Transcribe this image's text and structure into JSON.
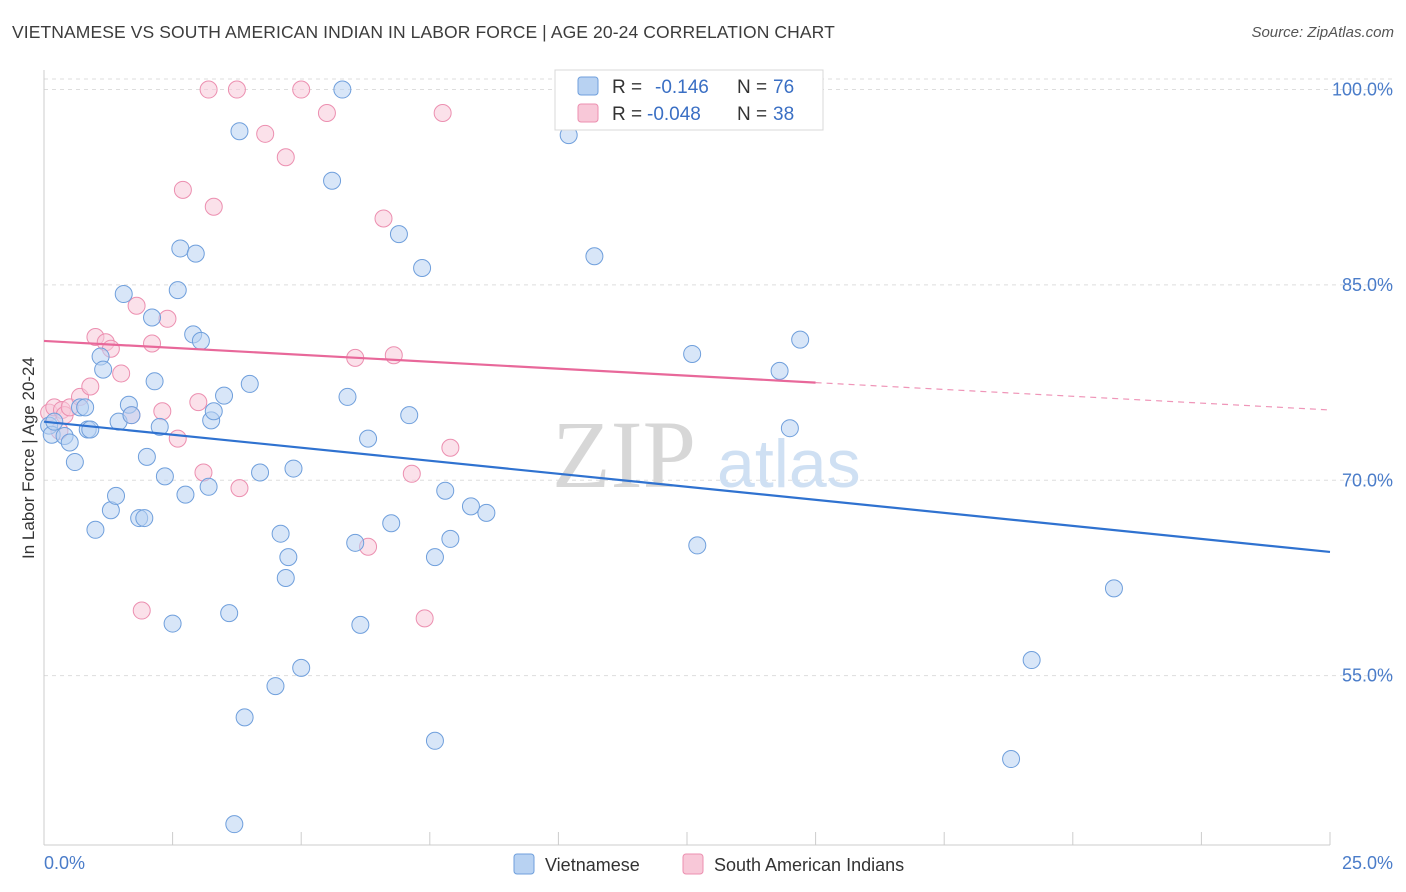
{
  "header": {
    "title": "VIETNAMESE VS SOUTH AMERICAN INDIAN IN LABOR FORCE | AGE 20-24 CORRELATION CHART",
    "source": "Source: ZipAtlas.com"
  },
  "watermark": {
    "zip": "ZIP",
    "atlas": "atlas"
  },
  "legend_box": {
    "rows": [
      {
        "r_label": "R =",
        "r_value": "-0.146",
        "n_label": "N =",
        "n_value": "76"
      },
      {
        "r_label": "R =",
        "r_value": "-0.048",
        "n_label": "N =",
        "n_value": "38"
      }
    ]
  },
  "colors": {
    "series1_fill": "#b8d2f2",
    "series1_stroke": "#6f9fdc",
    "series1_line": "#2f72d0",
    "series2_fill": "#f8c8d8",
    "series2_stroke": "#ec8fb0",
    "series2_line": "#e8689a",
    "tick_text": "#4a7cc9",
    "grid": "#dddddd"
  },
  "chart_data": {
    "type": "scatter",
    "title": "VIETNAMESE VS SOUTH AMERICAN INDIAN IN LABOR FORCE | AGE 20-24 CORRELATION CHART",
    "xlabel": "",
    "ylabel": "In Labor Force | Age 20-24",
    "xlim": [
      0,
      25
    ],
    "ylim": [
      42,
      101.5
    ],
    "x_ticks": [
      "0.0%",
      "25.0%"
    ],
    "y_ticks": [
      {
        "value": 55,
        "label": "55.0%"
      },
      {
        "value": 70,
        "label": "70.0%"
      },
      {
        "value": 85,
        "label": "85.0%"
      },
      {
        "value": 100,
        "label": "100.0%"
      }
    ],
    "grid": true,
    "legend_position": "bottom",
    "series": [
      {
        "name": "Vietnamese",
        "r": -0.146,
        "n": 76,
        "trend": {
          "x": [
            0,
            25
          ],
          "y": [
            74.5,
            64.5
          ]
        },
        "points": [
          [
            0.1,
            74.2
          ],
          [
            0.15,
            73.5
          ],
          [
            0.2,
            74.5
          ],
          [
            0.4,
            73.4
          ],
          [
            0.5,
            72.9
          ],
          [
            0.6,
            71.4
          ],
          [
            0.7,
            75.6
          ],
          [
            0.8,
            75.6
          ],
          [
            0.85,
            73.9
          ],
          [
            0.9,
            73.9
          ],
          [
            1.0,
            66.2
          ],
          [
            1.1,
            79.5
          ],
          [
            1.15,
            78.5
          ],
          [
            1.3,
            67.7
          ],
          [
            1.4,
            68.8
          ],
          [
            1.45,
            74.5
          ],
          [
            1.55,
            84.3
          ],
          [
            1.65,
            75.8
          ],
          [
            1.7,
            75.0
          ],
          [
            1.85,
            67.1
          ],
          [
            1.95,
            67.1
          ],
          [
            2.0,
            71.8
          ],
          [
            2.1,
            82.5
          ],
          [
            2.15,
            77.6
          ],
          [
            2.25,
            74.1
          ],
          [
            2.35,
            70.3
          ],
          [
            2.5,
            59.0
          ],
          [
            2.6,
            84.6
          ],
          [
            2.65,
            87.8
          ],
          [
            2.75,
            68.9
          ],
          [
            2.9,
            81.2
          ],
          [
            2.95,
            87.4
          ],
          [
            3.05,
            80.7
          ],
          [
            3.2,
            69.5
          ],
          [
            3.25,
            74.6
          ],
          [
            3.3,
            75.3
          ],
          [
            3.5,
            76.5
          ],
          [
            3.6,
            59.8
          ],
          [
            3.7,
            43.6
          ],
          [
            3.8,
            96.8
          ],
          [
            3.9,
            51.8
          ],
          [
            4.0,
            77.4
          ],
          [
            4.2,
            70.6
          ],
          [
            4.5,
            54.2
          ],
          [
            4.6,
            65.9
          ],
          [
            4.7,
            62.5
          ],
          [
            4.75,
            64.1
          ],
          [
            4.85,
            70.9
          ],
          [
            5.0,
            55.6
          ],
          [
            5.6,
            93.0
          ],
          [
            5.8,
            100.0
          ],
          [
            5.9,
            76.4
          ],
          [
            6.05,
            65.2
          ],
          [
            6.15,
            58.9
          ],
          [
            6.3,
            73.2
          ],
          [
            6.75,
            66.7
          ],
          [
            6.9,
            88.9
          ],
          [
            7.1,
            75.0
          ],
          [
            7.35,
            86.3
          ],
          [
            7.6,
            64.1
          ],
          [
            7.6,
            50.0
          ],
          [
            7.8,
            69.2
          ],
          [
            7.9,
            65.5
          ],
          [
            8.3,
            68.0
          ],
          [
            8.6,
            67.5
          ],
          [
            10.2,
            96.5
          ],
          [
            10.7,
            87.2
          ],
          [
            11.2,
            100.0
          ],
          [
            12.6,
            79.7
          ],
          [
            12.7,
            65.0
          ],
          [
            14.3,
            78.4
          ],
          [
            14.7,
            80.8
          ],
          [
            18.8,
            48.6
          ],
          [
            19.2,
            56.2
          ],
          [
            20.8,
            61.7
          ],
          [
            14.5,
            74.0
          ]
        ]
      },
      {
        "name": "South American Indians",
        "r": -0.048,
        "n": 38,
        "trend": {
          "x": [
            0,
            15
          ],
          "y": [
            80.7,
            77.5
          ]
        },
        "trend_dashed": {
          "x": [
            15,
            25
          ],
          "y": [
            77.5,
            75.4
          ]
        },
        "points": [
          [
            0.1,
            75.2
          ],
          [
            0.2,
            75.6
          ],
          [
            0.3,
            73.8
          ],
          [
            0.35,
            75.4
          ],
          [
            0.4,
            75.0
          ],
          [
            0.5,
            75.6
          ],
          [
            0.7,
            76.4
          ],
          [
            0.9,
            77.2
          ],
          [
            1.0,
            81.0
          ],
          [
            1.2,
            80.6
          ],
          [
            1.3,
            80.1
          ],
          [
            1.5,
            78.2
          ],
          [
            1.7,
            75.0
          ],
          [
            1.8,
            83.4
          ],
          [
            1.9,
            60.0
          ],
          [
            2.1,
            80.5
          ],
          [
            2.3,
            75.3
          ],
          [
            2.4,
            82.4
          ],
          [
            2.6,
            73.2
          ],
          [
            2.7,
            92.3
          ],
          [
            3.0,
            76.0
          ],
          [
            3.1,
            70.6
          ],
          [
            3.2,
            100.0
          ],
          [
            3.3,
            91.0
          ],
          [
            3.75,
            100.0
          ],
          [
            3.8,
            69.4
          ],
          [
            4.3,
            96.6
          ],
          [
            4.7,
            94.8
          ],
          [
            5.0,
            100.0
          ],
          [
            5.5,
            98.2
          ],
          [
            6.05,
            79.4
          ],
          [
            6.3,
            64.9
          ],
          [
            6.6,
            90.1
          ],
          [
            6.8,
            79.6
          ],
          [
            7.15,
            70.5
          ],
          [
            7.4,
            59.4
          ],
          [
            7.75,
            98.2
          ],
          [
            7.9,
            72.5
          ]
        ]
      }
    ]
  },
  "bottom_legend": {
    "items": [
      "Vietnamese",
      "South American Indians"
    ]
  }
}
